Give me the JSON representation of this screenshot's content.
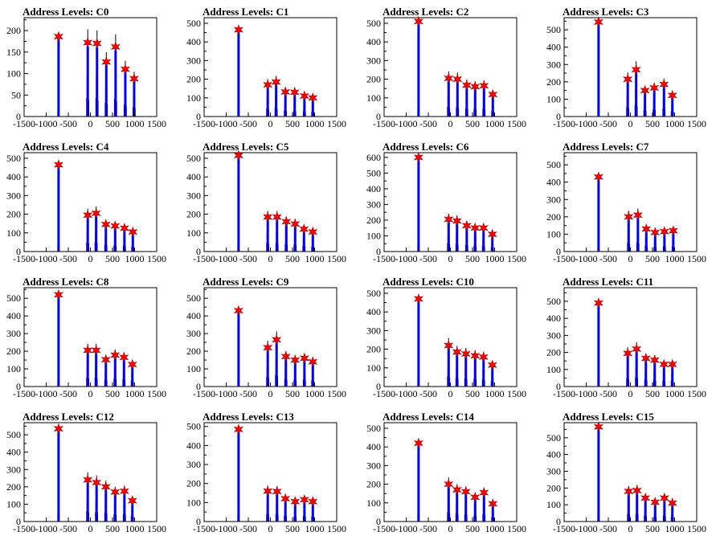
{
  "chart_data": [
    {
      "type": "histogram",
      "title": "Address Levels: C0",
      "xlim": [
        -1500,
        1500
      ],
      "ylim": [
        0,
        230
      ],
      "yticks": [
        0,
        50,
        100,
        150,
        200
      ],
      "xticks": [
        -1500,
        -1000,
        -500,
        0,
        500,
        1000,
        1500
      ],
      "peaks": [
        {
          "x": -720,
          "y": 186
        },
        {
          "x": -60,
          "y": 172
        },
        {
          "x": 150,
          "y": 170
        },
        {
          "x": 360,
          "y": 127
        },
        {
          "x": 570,
          "y": 162
        },
        {
          "x": 790,
          "y": 110
        },
        {
          "x": 990,
          "y": 88
        }
      ]
    },
    {
      "type": "histogram",
      "title": "Address Levels: C1",
      "xlim": [
        -1500,
        1500
      ],
      "ylim": [
        0,
        530
      ],
      "yticks": [
        0,
        100,
        200,
        300,
        400,
        500
      ],
      "xticks": [
        -1500,
        -1000,
        -500,
        0,
        500,
        1000,
        1500
      ],
      "peaks": [
        {
          "x": -720,
          "y": 465
        },
        {
          "x": -60,
          "y": 170
        },
        {
          "x": 130,
          "y": 185
        },
        {
          "x": 340,
          "y": 132
        },
        {
          "x": 550,
          "y": 130
        },
        {
          "x": 770,
          "y": 110
        },
        {
          "x": 960,
          "y": 100
        }
      ]
    },
    {
      "type": "histogram",
      "title": "Address Levels: C2",
      "xlim": [
        -1500,
        1500
      ],
      "ylim": [
        0,
        530
      ],
      "yticks": [
        0,
        100,
        200,
        300,
        400,
        500
      ],
      "xticks": [
        -1500,
        -1000,
        -500,
        0,
        500,
        1000,
        1500
      ],
      "peaks": [
        {
          "x": -720,
          "y": 510
        },
        {
          "x": -40,
          "y": 205
        },
        {
          "x": 160,
          "y": 200
        },
        {
          "x": 370,
          "y": 168
        },
        {
          "x": 560,
          "y": 160
        },
        {
          "x": 760,
          "y": 165
        },
        {
          "x": 960,
          "y": 118
        }
      ]
    },
    {
      "type": "histogram",
      "title": "Address Levels: C3",
      "xlim": [
        -1500,
        1500
      ],
      "ylim": [
        0,
        570
      ],
      "yticks": [
        0,
        100,
        200,
        300,
        400,
        500
      ],
      "xticks": [
        -1500,
        -1000,
        -500,
        0,
        500,
        1000,
        1500
      ],
      "peaks": [
        {
          "x": -720,
          "y": 545
        },
        {
          "x": -60,
          "y": 215
        },
        {
          "x": 130,
          "y": 270
        },
        {
          "x": 330,
          "y": 150
        },
        {
          "x": 540,
          "y": 165
        },
        {
          "x": 760,
          "y": 185
        },
        {
          "x": 950,
          "y": 122
        }
      ]
    },
    {
      "type": "histogram",
      "title": "Address Levels: C4",
      "xlim": [
        -1500,
        1500
      ],
      "ylim": [
        0,
        530
      ],
      "yticks": [
        0,
        100,
        200,
        300,
        400,
        500
      ],
      "xticks": [
        -1500,
        -1000,
        -500,
        0,
        500,
        1000,
        1500
      ],
      "peaks": [
        {
          "x": -720,
          "y": 465
        },
        {
          "x": -60,
          "y": 195
        },
        {
          "x": 130,
          "y": 205
        },
        {
          "x": 350,
          "y": 145
        },
        {
          "x": 560,
          "y": 137
        },
        {
          "x": 770,
          "y": 125
        },
        {
          "x": 960,
          "y": 105
        }
      ]
    },
    {
      "type": "histogram",
      "title": "Address Levels: C5",
      "xlim": [
        -1500,
        1500
      ],
      "ylim": [
        0,
        530
      ],
      "yticks": [
        0,
        100,
        200,
        300,
        400,
        500
      ],
      "xticks": [
        -1500,
        -1000,
        -500,
        0,
        500,
        1000,
        1500
      ],
      "peaks": [
        {
          "x": -720,
          "y": 515
        },
        {
          "x": -60,
          "y": 185
        },
        {
          "x": 150,
          "y": 185
        },
        {
          "x": 360,
          "y": 160
        },
        {
          "x": 560,
          "y": 148
        },
        {
          "x": 760,
          "y": 120
        },
        {
          "x": 960,
          "y": 105
        }
      ]
    },
    {
      "type": "histogram",
      "title": "Address Levels: C6",
      "xlim": [
        -1500,
        1500
      ],
      "ylim": [
        0,
        630
      ],
      "yticks": [
        0,
        100,
        200,
        300,
        400,
        500,
        600
      ],
      "xticks": [
        -1500,
        -1000,
        -500,
        0,
        500,
        1000,
        1500
      ],
      "peaks": [
        {
          "x": -720,
          "y": 600
        },
        {
          "x": -40,
          "y": 205
        },
        {
          "x": 150,
          "y": 195
        },
        {
          "x": 370,
          "y": 165
        },
        {
          "x": 560,
          "y": 150
        },
        {
          "x": 750,
          "y": 150
        },
        {
          "x": 950,
          "y": 110
        }
      ]
    },
    {
      "type": "histogram",
      "title": "Address Levels: C7",
      "xlim": [
        -1500,
        1500
      ],
      "ylim": [
        0,
        570
      ],
      "yticks": [
        0,
        100,
        200,
        300,
        400,
        500
      ],
      "xticks": [
        -1500,
        -1000,
        -500,
        0,
        500,
        1000,
        1500
      ],
      "peaks": [
        {
          "x": -720,
          "y": 430
        },
        {
          "x": -40,
          "y": 200
        },
        {
          "x": 170,
          "y": 210
        },
        {
          "x": 360,
          "y": 130
        },
        {
          "x": 560,
          "y": 110
        },
        {
          "x": 770,
          "y": 115
        },
        {
          "x": 970,
          "y": 120
        }
      ]
    },
    {
      "type": "histogram",
      "title": "Address Levels: C8",
      "xlim": [
        -1500,
        1500
      ],
      "ylim": [
        0,
        560
      ],
      "yticks": [
        0,
        100,
        200,
        300,
        400,
        500
      ],
      "xticks": [
        -1500,
        -1000,
        -500,
        0,
        500,
        1000,
        1500
      ],
      "peaks": [
        {
          "x": -720,
          "y": 520
        },
        {
          "x": -60,
          "y": 205
        },
        {
          "x": 130,
          "y": 205
        },
        {
          "x": 350,
          "y": 152
        },
        {
          "x": 560,
          "y": 178
        },
        {
          "x": 760,
          "y": 165
        },
        {
          "x": 950,
          "y": 125
        }
      ]
    },
    {
      "type": "histogram",
      "title": "Address Levels: C9",
      "xlim": [
        -1500,
        1500
      ],
      "ylim": [
        0,
        560
      ],
      "yticks": [
        0,
        100,
        200,
        300,
        400,
        500
      ],
      "xticks": [
        -1500,
        -1000,
        -500,
        0,
        500,
        1000,
        1500
      ],
      "peaks": [
        {
          "x": -720,
          "y": 430
        },
        {
          "x": -60,
          "y": 220
        },
        {
          "x": 140,
          "y": 265
        },
        {
          "x": 350,
          "y": 170
        },
        {
          "x": 560,
          "y": 150
        },
        {
          "x": 770,
          "y": 160
        },
        {
          "x": 960,
          "y": 140
        }
      ]
    },
    {
      "type": "histogram",
      "title": "Address Levels: C10",
      "xlim": [
        -1500,
        1500
      ],
      "ylim": [
        0,
        530
      ],
      "yticks": [
        0,
        100,
        200,
        300,
        400,
        500
      ],
      "xticks": [
        -1500,
        -1000,
        -500,
        0,
        500,
        1000,
        1500
      ],
      "peaks": [
        {
          "x": -720,
          "y": 470
        },
        {
          "x": -40,
          "y": 220
        },
        {
          "x": 150,
          "y": 185
        },
        {
          "x": 350,
          "y": 175
        },
        {
          "x": 560,
          "y": 165
        },
        {
          "x": 750,
          "y": 158
        },
        {
          "x": 950,
          "y": 115
        }
      ]
    },
    {
      "type": "histogram",
      "title": "Address Levels: C11",
      "xlim": [
        -1500,
        1500
      ],
      "ylim": [
        0,
        580
      ],
      "yticks": [
        0,
        100,
        200,
        300,
        400,
        500
      ],
      "xticks": [
        -1500,
        -1000,
        -500,
        0,
        500,
        1000,
        1500
      ],
      "peaks": [
        {
          "x": -720,
          "y": 490
        },
        {
          "x": -60,
          "y": 195
        },
        {
          "x": 140,
          "y": 220
        },
        {
          "x": 350,
          "y": 165
        },
        {
          "x": 550,
          "y": 155
        },
        {
          "x": 760,
          "y": 130
        },
        {
          "x": 950,
          "y": 130
        }
      ]
    },
    {
      "type": "histogram",
      "title": "Address Levels: C12",
      "xlim": [
        -1500,
        1500
      ],
      "ylim": [
        0,
        570
      ],
      "yticks": [
        0,
        100,
        200,
        300,
        400,
        500
      ],
      "xticks": [
        -1500,
        -1000,
        -500,
        0,
        500,
        1000,
        1500
      ],
      "peaks": [
        {
          "x": -720,
          "y": 535
        },
        {
          "x": -60,
          "y": 240
        },
        {
          "x": 140,
          "y": 225
        },
        {
          "x": 350,
          "y": 200
        },
        {
          "x": 560,
          "y": 170
        },
        {
          "x": 770,
          "y": 175
        },
        {
          "x": 950,
          "y": 120
        }
      ]
    },
    {
      "type": "histogram",
      "title": "Address Levels: C13",
      "xlim": [
        -1500,
        1500
      ],
      "ylim": [
        0,
        520
      ],
      "yticks": [
        0,
        100,
        200,
        300,
        400,
        500
      ],
      "xticks": [
        -1500,
        -1000,
        -500,
        0,
        500,
        1000,
        1500
      ],
      "peaks": [
        {
          "x": -720,
          "y": 485
        },
        {
          "x": -60,
          "y": 160
        },
        {
          "x": 150,
          "y": 158
        },
        {
          "x": 340,
          "y": 120
        },
        {
          "x": 560,
          "y": 105
        },
        {
          "x": 770,
          "y": 115
        },
        {
          "x": 960,
          "y": 105
        }
      ]
    },
    {
      "type": "histogram",
      "title": "Address Levels: C14",
      "xlim": [
        -1500,
        1500
      ],
      "ylim": [
        0,
        530
      ],
      "yticks": [
        0,
        100,
        200,
        300,
        400,
        500
      ],
      "xticks": [
        -1500,
        -1000,
        -500,
        0,
        500,
        1000,
        1500
      ],
      "peaks": [
        {
          "x": -720,
          "y": 420
        },
        {
          "x": -40,
          "y": 200
        },
        {
          "x": 150,
          "y": 170
        },
        {
          "x": 350,
          "y": 160
        },
        {
          "x": 560,
          "y": 130
        },
        {
          "x": 760,
          "y": 155
        },
        {
          "x": 960,
          "y": 95
        }
      ]
    },
    {
      "type": "histogram",
      "title": "Address Levels: C15",
      "xlim": [
        -1500,
        1500
      ],
      "ylim": [
        0,
        590
      ],
      "yticks": [
        0,
        100,
        200,
        300,
        400,
        500
      ],
      "xticks": [
        -1500,
        -1000,
        -500,
        0,
        500,
        1000,
        1500
      ],
      "peaks": [
        {
          "x": -720,
          "y": 565
        },
        {
          "x": -40,
          "y": 180
        },
        {
          "x": 150,
          "y": 185
        },
        {
          "x": 340,
          "y": 140
        },
        {
          "x": 560,
          "y": 115
        },
        {
          "x": 770,
          "y": 140
        },
        {
          "x": 950,
          "y": 110
        }
      ]
    }
  ],
  "colors": {
    "histogram_fill": "#0000ff",
    "histogram_line": "#000000",
    "peak_marker": "#ff0000",
    "axis": "#000000"
  }
}
